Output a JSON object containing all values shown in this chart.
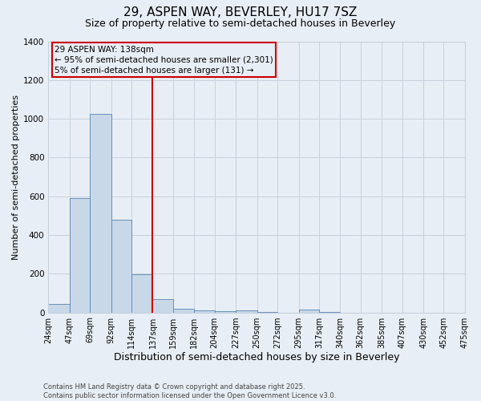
{
  "title": "29, ASPEN WAY, BEVERLEY, HU17 7SZ",
  "subtitle": "Size of property relative to semi-detached houses in Beverley",
  "xlabel": "Distribution of semi-detached houses by size in Beverley",
  "ylabel": "Number of semi-detached properties",
  "footnote1": "Contains HM Land Registry data © Crown copyright and database right 2025.",
  "footnote2": "Contains public sector information licensed under the Open Government Licence v3.0.",
  "annotation_line1": "29 ASPEN WAY: 138sqm",
  "annotation_line2": "← 95% of semi-detached houses are smaller (2,301)",
  "annotation_line3": "5% of semi-detached houses are larger (131) →",
  "bin_labels": [
    "24sqm",
    "47sqm",
    "69sqm",
    "92sqm",
    "114sqm",
    "137sqm",
    "159sqm",
    "182sqm",
    "204sqm",
    "227sqm",
    "250sqm",
    "272sqm",
    "295sqm",
    "317sqm",
    "340sqm",
    "362sqm",
    "385sqm",
    "407sqm",
    "430sqm",
    "452sqm",
    "475sqm"
  ],
  "bin_edges": [
    24,
    47,
    69,
    92,
    114,
    137,
    159,
    182,
    204,
    227,
    250,
    272,
    295,
    317,
    340,
    362,
    385,
    407,
    430,
    452,
    475
  ],
  "bar_values": [
    45,
    590,
    1025,
    480,
    195,
    68,
    18,
    10,
    8,
    10,
    3,
    0,
    15,
    2,
    0,
    0,
    0,
    0,
    0,
    0
  ],
  "bar_color": "#c8d8e8",
  "bar_edge_color": "#5585b5",
  "grid_color": "#c8d0dc",
  "bg_color": "#e8eef5",
  "vline_color": "#cc0000",
  "vline_x": 137,
  "ylim": [
    0,
    1400
  ],
  "yticks": [
    0,
    200,
    400,
    600,
    800,
    1000,
    1200,
    1400
  ],
  "title_fontsize": 11,
  "subtitle_fontsize": 9,
  "ylabel_fontsize": 8,
  "xlabel_fontsize": 9,
  "tick_fontsize": 7,
  "footnote_fontsize": 6,
  "annot_fontsize": 7.5
}
